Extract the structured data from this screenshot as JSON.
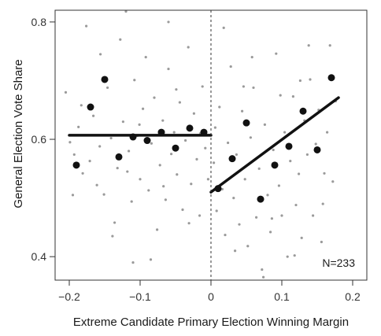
{
  "chart_data": {
    "type": "scatter",
    "xlabel": "Extreme Candidate Primary Election Winning Margin",
    "ylabel": "General Election Vote Share",
    "xlim": [
      -0.22,
      0.22
    ],
    "ylim": [
      0.36,
      0.82
    ],
    "x_ticks": [
      -0.2,
      -0.1,
      0.0,
      0.1,
      0.2
    ],
    "x_tick_labels": [
      "−0.2",
      "−0.1",
      "0",
      "0.1",
      "0.2"
    ],
    "y_ticks": [
      0.4,
      0.6,
      0.8
    ],
    "y_tick_labels": [
      "0.4",
      "0.6",
      "0.8"
    ],
    "annotation": "N=233",
    "cutoff_x": 0.0,
    "grid": false,
    "colors": {
      "raw": "#9a9a9a",
      "binned": "#111111",
      "fit": "#111111",
      "frame": "#333333"
    },
    "series": [
      {
        "role": "binned-means",
        "points": [
          [
            -0.19,
            0.556
          ],
          [
            -0.17,
            0.655
          ],
          [
            -0.15,
            0.702
          ],
          [
            -0.13,
            0.57
          ],
          [
            -0.11,
            0.604
          ],
          [
            -0.09,
            0.598
          ],
          [
            -0.07,
            0.612
          ],
          [
            -0.05,
            0.585
          ],
          [
            -0.03,
            0.619
          ],
          [
            -0.01,
            0.612
          ],
          [
            0.01,
            0.516
          ],
          [
            0.03,
            0.567
          ],
          [
            0.05,
            0.628
          ],
          [
            0.07,
            0.498
          ],
          [
            0.09,
            0.556
          ],
          [
            0.11,
            0.588
          ],
          [
            0.13,
            0.648
          ],
          [
            0.15,
            0.582
          ],
          [
            0.17,
            0.705
          ]
        ]
      },
      {
        "role": "fit-left",
        "points": [
          [
            -0.2,
            0.607
          ],
          [
            0.0,
            0.607
          ]
        ]
      },
      {
        "role": "fit-right",
        "points": [
          [
            0.0,
            0.51
          ],
          [
            0.18,
            0.671
          ]
        ]
      },
      {
        "role": "raw-observations",
        "points": [
          [
            -0.205,
            0.68
          ],
          [
            -0.199,
            0.595
          ],
          [
            -0.193,
            0.574
          ],
          [
            -0.187,
            0.621
          ],
          [
            -0.181,
            0.542
          ],
          [
            -0.176,
            0.793
          ],
          [
            -0.171,
            0.563
          ],
          [
            -0.166,
            0.64
          ],
          [
            -0.161,
            0.522
          ],
          [
            -0.156,
            0.745
          ],
          [
            -0.151,
            0.506
          ],
          [
            -0.146,
            0.688
          ],
          [
            -0.141,
            0.602
          ],
          [
            -0.136,
            0.458
          ],
          [
            -0.132,
            0.551
          ],
          [
            -0.128,
            0.77
          ],
          [
            -0.124,
            0.63
          ],
          [
            -0.12,
            0.818
          ],
          [
            -0.116,
            0.58
          ],
          [
            -0.112,
            0.494
          ],
          [
            -0.108,
            0.701
          ],
          [
            -0.104,
            0.606
          ],
          [
            -0.1,
            0.532
          ],
          [
            -0.096,
            0.652
          ],
          [
            -0.092,
            0.74
          ],
          [
            -0.088,
            0.513
          ],
          [
            -0.084,
            0.593
          ],
          [
            -0.08,
            0.671
          ],
          [
            -0.076,
            0.446
          ],
          [
            -0.072,
            0.556
          ],
          [
            -0.068,
            0.632
          ],
          [
            -0.064,
            0.497
          ],
          [
            -0.06,
            0.72
          ],
          [
            -0.056,
            0.575
          ],
          [
            -0.052,
            0.612
          ],
          [
            -0.048,
            0.54
          ],
          [
            -0.044,
            0.663
          ],
          [
            -0.04,
            0.48
          ],
          [
            -0.036,
            0.598
          ],
          [
            -0.032,
            0.757
          ],
          [
            -0.028,
            0.524
          ],
          [
            -0.024,
            0.644
          ],
          [
            -0.02,
            0.566
          ],
          [
            -0.016,
            0.47
          ],
          [
            -0.012,
            0.69
          ],
          [
            -0.008,
            0.585
          ],
          [
            -0.004,
            0.532
          ],
          [
            -0.195,
            0.505
          ],
          [
            -0.183,
            0.658
          ],
          [
            -0.157,
            0.588
          ],
          [
            -0.139,
            0.435
          ],
          [
            -0.118,
            0.545
          ],
          [
            -0.101,
            0.625
          ],
          [
            -0.085,
            0.395
          ],
          [
            -0.067,
            0.52
          ],
          [
            -0.049,
            0.685
          ],
          [
            -0.031,
            0.457
          ],
          [
            -0.015,
            0.61
          ],
          [
            -0.11,
            0.39
          ],
          [
            -0.06,
            0.8
          ],
          [
            0.004,
            0.56
          ],
          [
            0.008,
            0.478
          ],
          [
            0.012,
            0.655
          ],
          [
            0.016,
            0.515
          ],
          [
            0.02,
            0.437
          ],
          [
            0.024,
            0.594
          ],
          [
            0.028,
            0.724
          ],
          [
            0.032,
            0.5
          ],
          [
            0.036,
            0.574
          ],
          [
            0.04,
            0.455
          ],
          [
            0.044,
            0.648
          ],
          [
            0.048,
            0.532
          ],
          [
            0.052,
            0.418
          ],
          [
            0.056,
            0.603
          ],
          [
            0.06,
            0.688
          ],
          [
            0.064,
            0.467
          ],
          [
            0.068,
            0.55
          ],
          [
            0.072,
            0.378
          ],
          [
            0.076,
            0.625
          ],
          [
            0.08,
            0.505
          ],
          [
            0.084,
            0.442
          ],
          [
            0.088,
            0.582
          ],
          [
            0.092,
            0.746
          ],
          [
            0.096,
            0.521
          ],
          [
            0.1,
            0.47
          ],
          [
            0.104,
            0.612
          ],
          [
            0.108,
            0.4
          ],
          [
            0.112,
            0.563
          ],
          [
            0.116,
            0.673
          ],
          [
            0.12,
            0.488
          ],
          [
            0.124,
            0.541
          ],
          [
            0.128,
            0.432
          ],
          [
            0.132,
            0.632
          ],
          [
            0.136,
            0.574
          ],
          [
            0.14,
            0.702
          ],
          [
            0.144,
            0.47
          ],
          [
            0.148,
            0.592
          ],
          [
            0.152,
            0.65
          ],
          [
            0.156,
            0.425
          ],
          [
            0.16,
            0.542
          ],
          [
            0.164,
            0.612
          ],
          [
            0.168,
            0.76
          ],
          [
            0.172,
            0.528
          ],
          [
            0.176,
            0.665
          ],
          [
            0.018,
            0.79
          ],
          [
            0.034,
            0.41
          ],
          [
            0.058,
            0.74
          ],
          [
            0.074,
            0.365
          ],
          [
            0.098,
            0.675
          ],
          [
            0.118,
            0.402
          ],
          [
            0.138,
            0.76
          ],
          [
            0.158,
            0.49
          ],
          [
            0.006,
            0.62
          ],
          [
            0.046,
            0.69
          ],
          [
            0.086,
            0.465
          ],
          [
            0.126,
            0.7
          ]
        ]
      }
    ]
  }
}
